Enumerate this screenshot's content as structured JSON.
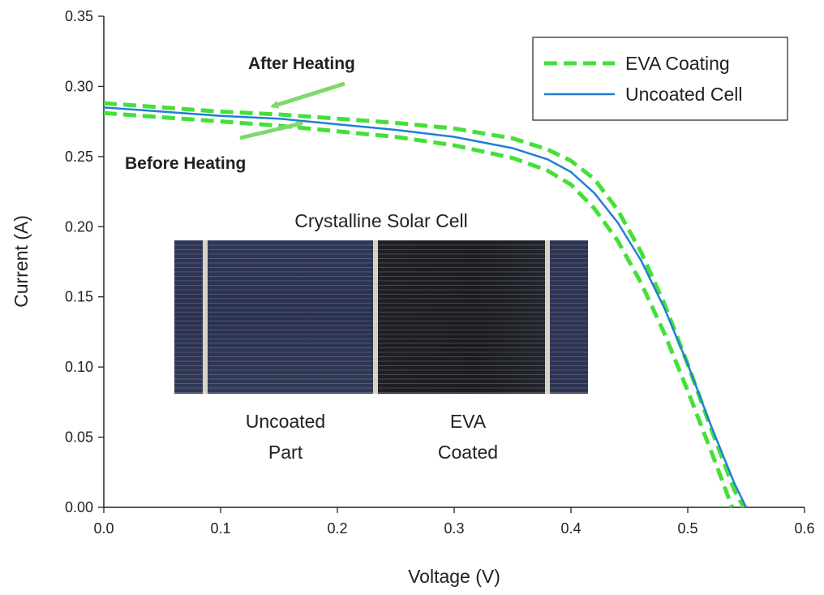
{
  "chart_data": {
    "type": "line",
    "xlabel": "Voltage (V)",
    "ylabel": "Current (A)",
    "xlim": [
      0,
      0.6
    ],
    "ylim": [
      0,
      0.35
    ],
    "x_ticks": [
      "0.0",
      "0.1",
      "0.2",
      "0.3",
      "0.4",
      "0.5",
      "0.6"
    ],
    "y_ticks": [
      "0.00",
      "0.05",
      "0.10",
      "0.15",
      "0.20",
      "0.25",
      "0.30",
      "0.35"
    ],
    "grid": false,
    "legend": {
      "position": "top-right",
      "entries": [
        {
          "label": "EVA Coating",
          "color": "#44e03a",
          "style": "dashed"
        },
        {
          "label": "Uncoated Cell",
          "color": "#1f7fd6",
          "style": "solid"
        }
      ]
    },
    "series": [
      {
        "name": "EVA Coating",
        "annotation": "Before Heating",
        "color": "#44e03a",
        "style": "dashed",
        "points": [
          [
            0.0,
            0.281
          ],
          [
            0.05,
            0.278
          ],
          [
            0.1,
            0.275
          ],
          [
            0.15,
            0.272
          ],
          [
            0.2,
            0.268
          ],
          [
            0.25,
            0.264
          ],
          [
            0.3,
            0.258
          ],
          [
            0.35,
            0.249
          ],
          [
            0.38,
            0.24
          ],
          [
            0.4,
            0.23
          ],
          [
            0.42,
            0.213
          ],
          [
            0.44,
            0.19
          ],
          [
            0.46,
            0.16
          ],
          [
            0.48,
            0.124
          ],
          [
            0.5,
            0.083
          ],
          [
            0.52,
            0.04
          ],
          [
            0.53,
            0.018
          ],
          [
            0.538,
            0.0
          ]
        ]
      },
      {
        "name": "EVA Coating",
        "annotation": "After Heating",
        "color": "#44e03a",
        "style": "dashed",
        "points": [
          [
            0.0,
            0.288
          ],
          [
            0.05,
            0.285
          ],
          [
            0.1,
            0.282
          ],
          [
            0.15,
            0.28
          ],
          [
            0.2,
            0.277
          ],
          [
            0.25,
            0.274
          ],
          [
            0.3,
            0.27
          ],
          [
            0.35,
            0.263
          ],
          [
            0.38,
            0.255
          ],
          [
            0.4,
            0.247
          ],
          [
            0.42,
            0.234
          ],
          [
            0.44,
            0.212
          ],
          [
            0.46,
            0.182
          ],
          [
            0.48,
            0.145
          ],
          [
            0.5,
            0.102
          ],
          [
            0.52,
            0.056
          ],
          [
            0.54,
            0.012
          ],
          [
            0.548,
            0.0
          ]
        ]
      },
      {
        "name": "Uncoated Cell",
        "color": "#1f7fd6",
        "style": "solid",
        "points": [
          [
            0.0,
            0.285
          ],
          [
            0.05,
            0.282
          ],
          [
            0.1,
            0.279
          ],
          [
            0.15,
            0.277
          ],
          [
            0.2,
            0.273
          ],
          [
            0.25,
            0.269
          ],
          [
            0.3,
            0.264
          ],
          [
            0.35,
            0.256
          ],
          [
            0.38,
            0.248
          ],
          [
            0.4,
            0.239
          ],
          [
            0.42,
            0.224
          ],
          [
            0.44,
            0.203
          ],
          [
            0.46,
            0.176
          ],
          [
            0.48,
            0.142
          ],
          [
            0.5,
            0.102
          ],
          [
            0.52,
            0.058
          ],
          [
            0.54,
            0.017
          ],
          [
            0.55,
            0.0
          ]
        ]
      }
    ],
    "annotations": [
      {
        "text": "After Heating",
        "points_to_x": 0.145,
        "points_to_y": 0.283
      },
      {
        "text": "Before Heating",
        "points_to_x": 0.165,
        "points_to_y": 0.279
      }
    ],
    "inset": {
      "title": "Crystalline Solar Cell",
      "left_label_line1": "Uncoated",
      "left_label_line2": "Part",
      "right_label_line1": "EVA",
      "right_label_line2": "Coated",
      "uncoated_color": "#2c3350",
      "coated_color": "#1e1e22",
      "busbar_color": "#d9d3c6"
    }
  }
}
